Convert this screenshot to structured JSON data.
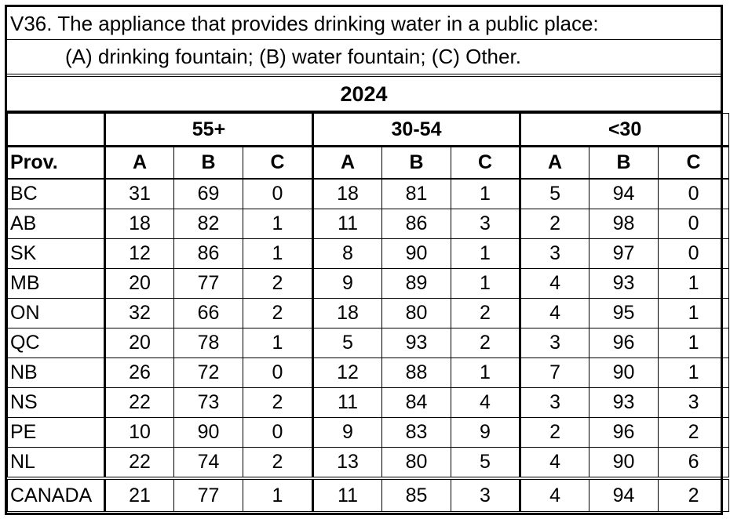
{
  "question": {
    "line1": "V36. The appliance that provides drinking water in a public place:",
    "line2": "(A) drinking fountain; (B) water fountain; (C) Other."
  },
  "year": "2024",
  "groups": [
    "55+",
    "30-54",
    "<30"
  ],
  "columns": [
    "Prov.",
    "A",
    "B",
    "C",
    "A",
    "B",
    "C",
    "A",
    "B",
    "C"
  ],
  "rows": [
    {
      "prov": "BC",
      "v": [
        "31",
        "69",
        "0",
        "18",
        "81",
        "1",
        "5",
        "94",
        "0"
      ]
    },
    {
      "prov": "AB",
      "v": [
        "18",
        "82",
        "1",
        "11",
        "86",
        "3",
        "2",
        "98",
        "0"
      ]
    },
    {
      "prov": "SK",
      "v": [
        "12",
        "86",
        "1",
        "8",
        "90",
        "1",
        "3",
        "97",
        "0"
      ]
    },
    {
      "prov": "MB",
      "v": [
        "20",
        "77",
        "2",
        "9",
        "89",
        "1",
        "4",
        "93",
        "1"
      ]
    },
    {
      "prov": "ON",
      "v": [
        "32",
        "66",
        "2",
        "18",
        "80",
        "2",
        "4",
        "95",
        "1"
      ]
    },
    {
      "prov": "QC",
      "v": [
        "20",
        "78",
        "1",
        "5",
        "93",
        "2",
        "3",
        "96",
        "1"
      ]
    },
    {
      "prov": "NB",
      "v": [
        "26",
        "72",
        "0",
        "12",
        "88",
        "1",
        "7",
        "90",
        "1"
      ]
    },
    {
      "prov": "NS",
      "v": [
        "22",
        "73",
        "2",
        "11",
        "84",
        "4",
        "3",
        "93",
        "3"
      ]
    },
    {
      "prov": "PE",
      "v": [
        "10",
        "90",
        "0",
        "9",
        "83",
        "9",
        "2",
        "96",
        "2"
      ]
    },
    {
      "prov": "NL",
      "v": [
        "22",
        "74",
        "2",
        "13",
        "80",
        "5",
        "4",
        "90",
        "6"
      ]
    }
  ],
  "total": {
    "prov": "CANADA",
    "v": [
      "21",
      "77",
      "1",
      "11",
      "85",
      "3",
      "4",
      "94",
      "2"
    ]
  }
}
